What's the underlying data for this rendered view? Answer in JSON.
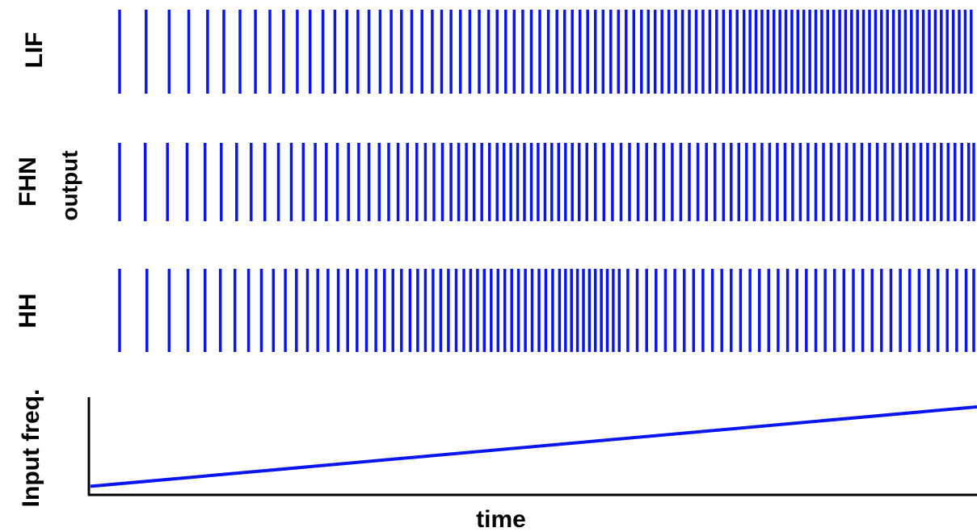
{
  "chart_data": {
    "type": "raster-and-line",
    "xlabel": "time",
    "ylabel": "output",
    "color": "#0a16f0",
    "panels": [
      {
        "name": "LIF",
        "spike_times": [
          0.0,
          0.031,
          0.058,
          0.081,
          0.103,
          0.122,
          0.141,
          0.159,
          0.176,
          0.192,
          0.208,
          0.223,
          0.238,
          0.252,
          0.266,
          0.279,
          0.292,
          0.305,
          0.318,
          0.33,
          0.342,
          0.354,
          0.366,
          0.377,
          0.388,
          0.399,
          0.41,
          0.421,
          0.432,
          0.442,
          0.452,
          0.462,
          0.472,
          0.482,
          0.492,
          0.502,
          0.512,
          0.521,
          0.53,
          0.539,
          0.548,
          0.557,
          0.566,
          0.575,
          0.584,
          0.593,
          0.602,
          0.611,
          0.619,
          0.627,
          0.635,
          0.643,
          0.651,
          0.659,
          0.667,
          0.675,
          0.683,
          0.691,
          0.699,
          0.707,
          0.715,
          0.723,
          0.731,
          0.738,
          0.745,
          0.752,
          0.759,
          0.766,
          0.773,
          0.78,
          0.787,
          0.794,
          0.801,
          0.808,
          0.815,
          0.822,
          0.829,
          0.836,
          0.843,
          0.85,
          0.857,
          0.864,
          0.871,
          0.878,
          0.885,
          0.892,
          0.899,
          0.906,
          0.913,
          0.92,
          0.927,
          0.934,
          0.941,
          0.948,
          0.955,
          0.962,
          0.969,
          0.976,
          0.983,
          0.99,
          0.997
        ]
      },
      {
        "name": "FHN",
        "spike_times": [
          0.0,
          0.03,
          0.056,
          0.079,
          0.1,
          0.119,
          0.137,
          0.154,
          0.17,
          0.186,
          0.201,
          0.215,
          0.229,
          0.242,
          0.255,
          0.268,
          0.28,
          0.292,
          0.304,
          0.315,
          0.326,
          0.337,
          0.348,
          0.358,
          0.368,
          0.378,
          0.388,
          0.397,
          0.406,
          0.415,
          0.424,
          0.433,
          0.442,
          0.45,
          0.458,
          0.466,
          0.474,
          0.482,
          0.49,
          0.498,
          0.506,
          0.514,
          0.522,
          0.53,
          0.538,
          0.547,
          0.557,
          0.567,
          0.577,
          0.587,
          0.597,
          0.607,
          0.617,
          0.627,
          0.637,
          0.647,
          0.657,
          0.667,
          0.677,
          0.687,
          0.697,
          0.707,
          0.716,
          0.725,
          0.734,
          0.743,
          0.752,
          0.761,
          0.77,
          0.779,
          0.788,
          0.797,
          0.806,
          0.815,
          0.824,
          0.833,
          0.842,
          0.851,
          0.86,
          0.869,
          0.878,
          0.887,
          0.896,
          0.905,
          0.914,
          0.922,
          0.93,
          0.938,
          0.946,
          0.954,
          0.962,
          0.97,
          0.978,
          0.986,
          0.994,
          1.0
        ]
      },
      {
        "name": "HH",
        "spike_times": [
          0.0,
          0.032,
          0.058,
          0.08,
          0.1,
          0.118,
          0.135,
          0.151,
          0.166,
          0.18,
          0.194,
          0.207,
          0.22,
          0.232,
          0.244,
          0.256,
          0.267,
          0.278,
          0.289,
          0.3,
          0.31,
          0.32,
          0.33,
          0.34,
          0.349,
          0.358,
          0.367,
          0.376,
          0.385,
          0.394,
          0.403,
          0.411,
          0.419,
          0.427,
          0.435,
          0.443,
          0.451,
          0.459,
          0.467,
          0.475,
          0.483,
          0.491,
          0.499,
          0.507,
          0.515,
          0.522,
          0.529,
          0.536,
          0.543,
          0.55,
          0.557,
          0.564,
          0.571,
          0.578,
          0.585,
          0.595,
          0.606,
          0.617,
          0.628,
          0.639,
          0.65,
          0.661,
          0.672,
          0.683,
          0.694,
          0.705,
          0.716,
          0.727,
          0.738,
          0.749,
          0.76,
          0.771,
          0.782,
          0.793,
          0.804,
          0.815,
          0.826,
          0.837,
          0.848,
          0.859,
          0.87,
          0.881,
          0.892,
          0.903,
          0.914,
          0.925,
          0.936,
          0.947,
          0.958,
          0.969,
          0.98,
          0.991,
          1.0
        ]
      }
    ],
    "input": {
      "name": "Input freq.",
      "x": [
        0,
        1
      ],
      "y": [
        0.08,
        0.9
      ],
      "ylim": [
        0,
        1
      ]
    }
  }
}
